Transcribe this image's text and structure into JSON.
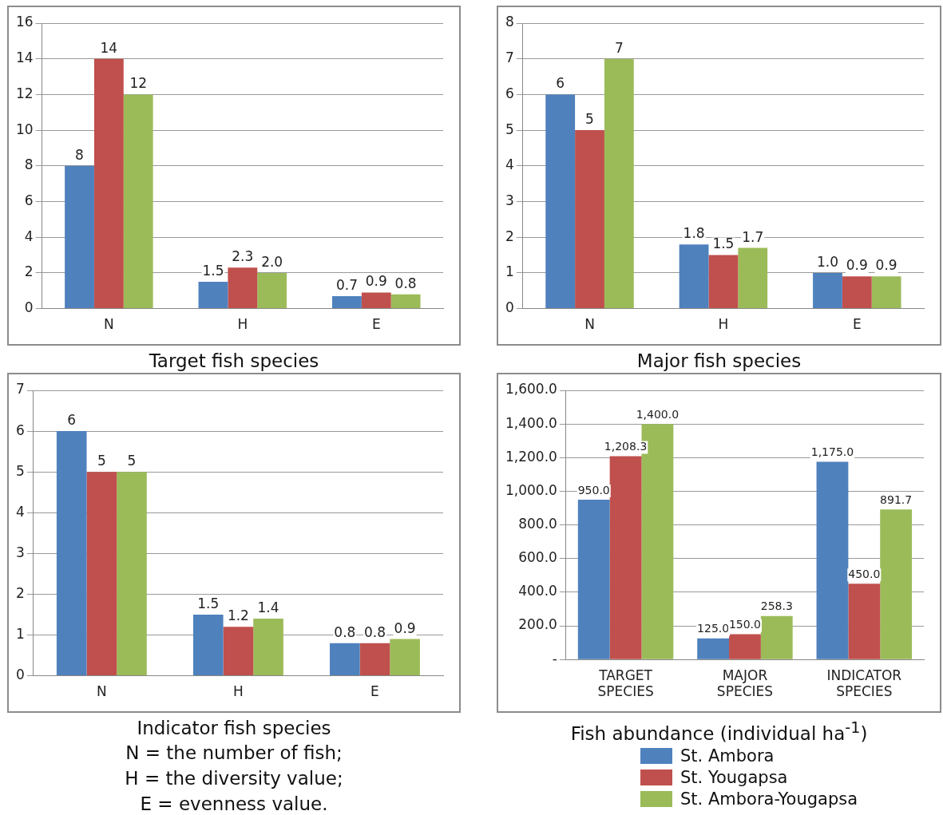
{
  "chart_data": [
    {
      "type": "bar",
      "title": "Target fish species",
      "categories": [
        "N",
        "H",
        "E"
      ],
      "ylim": [
        0,
        16
      ],
      "yticks": [
        0,
        2,
        4,
        6,
        8,
        10,
        12,
        14,
        16
      ],
      "grid": "y",
      "series": [
        {
          "color": "#4f81bd",
          "values": [
            8,
            1.5,
            0.7
          ],
          "value_labels": [
            "8",
            "1.5",
            "0.7"
          ]
        },
        {
          "color": "#c0504d",
          "values": [
            14,
            2.3,
            0.9
          ],
          "value_labels": [
            "14",
            "2.3",
            "0.9"
          ]
        },
        {
          "color": "#9bbb59",
          "values": [
            12,
            2.0,
            0.8
          ],
          "value_labels": [
            "12",
            "2.0",
            "0.8"
          ]
        }
      ]
    },
    {
      "type": "bar",
      "title": "Major fish species",
      "categories": [
        "N",
        "H",
        "E"
      ],
      "ylim": [
        0,
        8
      ],
      "yticks": [
        0,
        1,
        2,
        3,
        4,
        5,
        6,
        7,
        8
      ],
      "grid": "y",
      "series": [
        {
          "color": "#4f81bd",
          "values": [
            6,
            1.8,
            1.0
          ],
          "value_labels": [
            "6",
            "1.8",
            "1.0"
          ]
        },
        {
          "color": "#c0504d",
          "values": [
            5,
            1.5,
            0.9
          ],
          "value_labels": [
            "5",
            "1.5",
            "0.9"
          ]
        },
        {
          "color": "#9bbb59",
          "values": [
            7,
            1.7,
            0.9
          ],
          "value_labels": [
            "7",
            "1.7",
            "0.9"
          ]
        }
      ]
    },
    {
      "type": "bar",
      "title": "Indicator fish species",
      "categories": [
        "N",
        "H",
        "E"
      ],
      "ylim": [
        0,
        7
      ],
      "yticks": [
        0,
        1,
        2,
        3,
        4,
        5,
        6,
        7
      ],
      "grid": "y",
      "annotations": [
        "N = the number of fish;",
        "H = the diversity value;",
        "E = evenness value."
      ],
      "series": [
        {
          "color": "#4f81bd",
          "values": [
            6,
            1.5,
            0.8
          ],
          "value_labels": [
            "6",
            "1.5",
            "0.8"
          ]
        },
        {
          "color": "#c0504d",
          "values": [
            5,
            1.2,
            0.8
          ],
          "value_labels": [
            "5",
            "1.2",
            "0.8"
          ]
        },
        {
          "color": "#9bbb59",
          "values": [
            5,
            1.4,
            0.9
          ],
          "value_labels": [
            "5",
            "1.4",
            "0.9"
          ]
        }
      ]
    },
    {
      "type": "bar",
      "title": "Fish abundance (individual ha$^{-1}$)",
      "categories": [
        "TARGET SPECIES",
        "MAJOR SPECIES",
        "INDICATOR SPECIES"
      ],
      "ylim": [
        0,
        1600
      ],
      "yticks": [
        {
          "value": 0,
          "label": "-"
        },
        {
          "value": 200,
          "label": "200.0"
        },
        {
          "value": 400,
          "label": "400.0"
        },
        {
          "value": 600,
          "label": "600.0"
        },
        {
          "value": 800,
          "label": "800.0"
        },
        {
          "value": 1000,
          "label": "1,000.0"
        },
        {
          "value": 1200,
          "label": "1,200.0"
        },
        {
          "value": 1400,
          "label": "1,400.0"
        },
        {
          "value": 1600,
          "label": "1,600.0"
        }
      ],
      "grid": "y",
      "legend": "bottom",
      "series": [
        {
          "name": "St. Ambora",
          "color": "#4f81bd",
          "values": [
            950,
            125,
            1175
          ],
          "value_labels": [
            "950.0",
            "125.0",
            "1,175.0"
          ]
        },
        {
          "name": "St. Yougapsa",
          "color": "#c0504d",
          "values": [
            1208.3,
            150,
            450
          ],
          "value_labels": [
            "1,208.3",
            "150.0",
            "450.0"
          ]
        },
        {
          "name": "St. Ambora-Yougapsa",
          "color": "#9bbb59",
          "values": [
            1400,
            258.3,
            891.7
          ],
          "value_labels": [
            "1,400.0",
            "258.3",
            "891.7"
          ]
        }
      ]
    }
  ]
}
